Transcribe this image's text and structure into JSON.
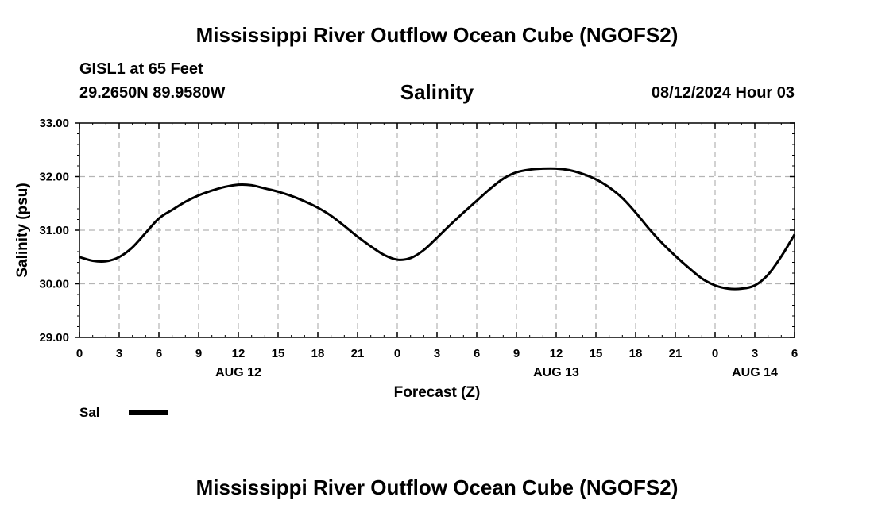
{
  "header": {
    "main_title": "Mississippi River Outflow Ocean Cube (NGOFS2)",
    "station": "GISL1 at 65 Feet",
    "coords": "29.2650N  89.9580W",
    "chart_title": "Salinity",
    "datetime": "08/12/2024 Hour 03"
  },
  "footer": {
    "title": "Mississippi River Outflow Ocean Cube (NGOFS2)"
  },
  "legend": {
    "label": "Sal",
    "color": "#000000"
  },
  "chart_data": {
    "type": "line",
    "title": "Salinity",
    "xlabel": "Forecast (Z)",
    "ylabel": "Salinity (psu)",
    "xlim": [
      0,
      54
    ],
    "ylim": [
      29.0,
      33.0
    ],
    "yticks": [
      29.0,
      30.0,
      31.0,
      32.0,
      33.0
    ],
    "ytick_labels": [
      "29.00",
      "30.00",
      "31.00",
      "32.00",
      "33.00"
    ],
    "xticks": [
      0,
      3,
      6,
      9,
      12,
      15,
      18,
      21,
      24,
      27,
      30,
      33,
      36,
      39,
      42,
      45,
      48,
      51,
      54
    ],
    "xtick_labels": [
      "0",
      "3",
      "6",
      "9",
      "12",
      "15",
      "18",
      "21",
      "0",
      "3",
      "6",
      "9",
      "12",
      "15",
      "18",
      "21",
      "0",
      "3",
      "6"
    ],
    "date_labels": [
      {
        "x": 12,
        "text": "AUG 12"
      },
      {
        "x": 36,
        "text": "AUG 13"
      },
      {
        "x": 51,
        "text": "AUG 14"
      }
    ],
    "grid": true,
    "series": [
      {
        "name": "Sal",
        "color": "#000000",
        "x": [
          0,
          1,
          2,
          3,
          4,
          5,
          6,
          7,
          8,
          9,
          10,
          11,
          12,
          13,
          14,
          15,
          16,
          17,
          18,
          19,
          20,
          21,
          22,
          23,
          24,
          25,
          26,
          27,
          28,
          29,
          30,
          31,
          32,
          33,
          34,
          35,
          36,
          37,
          38,
          39,
          40,
          41,
          42,
          43,
          44,
          45,
          46,
          47,
          48,
          49,
          50,
          51,
          52,
          53,
          54
        ],
        "y": [
          30.5,
          30.43,
          30.42,
          30.5,
          30.68,
          30.95,
          31.22,
          31.38,
          31.53,
          31.65,
          31.74,
          31.81,
          31.85,
          31.84,
          31.78,
          31.72,
          31.64,
          31.54,
          31.42,
          31.27,
          31.08,
          30.88,
          30.7,
          30.54,
          30.45,
          30.48,
          30.63,
          30.86,
          31.1,
          31.33,
          31.55,
          31.77,
          31.96,
          32.08,
          32.13,
          32.15,
          32.15,
          32.12,
          32.05,
          31.95,
          31.8,
          31.6,
          31.33,
          31.03,
          30.76,
          30.52,
          30.3,
          30.1,
          29.97,
          29.91,
          29.91,
          29.97,
          30.17,
          30.51,
          30.92
        ]
      }
    ]
  }
}
